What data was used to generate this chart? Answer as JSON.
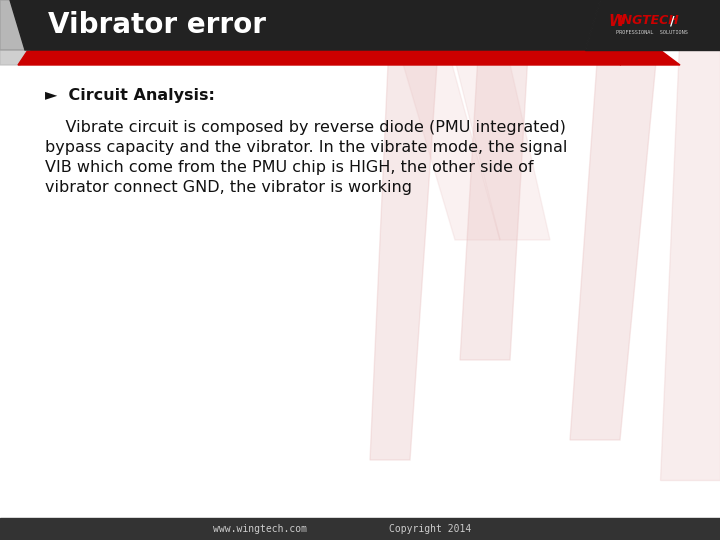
{
  "title": "Vibrator error",
  "subtitle": "►  Circuit Analysis:",
  "body_line1": "    Vibrate circuit is composed by reverse diode (PMU integrated)",
  "body_line2": "bypass capacity and the vibrator. In the vibrate mode, the signal",
  "body_line3": "VIB which come from the PMU chip is HIGH, the other side of",
  "body_line4": "vibrator connect GND, the vibrator is working",
  "footer_text_left": "www.wingtech.com",
  "footer_text_right": "Copyright 2014",
  "bg_color": "#ffffff",
  "header_dark": "#222222",
  "header_red": "#cc0000",
  "header_gray_left": "#aaaaaa",
  "title_color": "#ffffff",
  "title_fontsize": 20,
  "subtitle_fontsize": 11.5,
  "body_fontsize": 11.5,
  "footer_color": "#cccccc",
  "footer_bg": "#333333",
  "logo_red": "#cc0000",
  "logo_white": "#ffffff"
}
